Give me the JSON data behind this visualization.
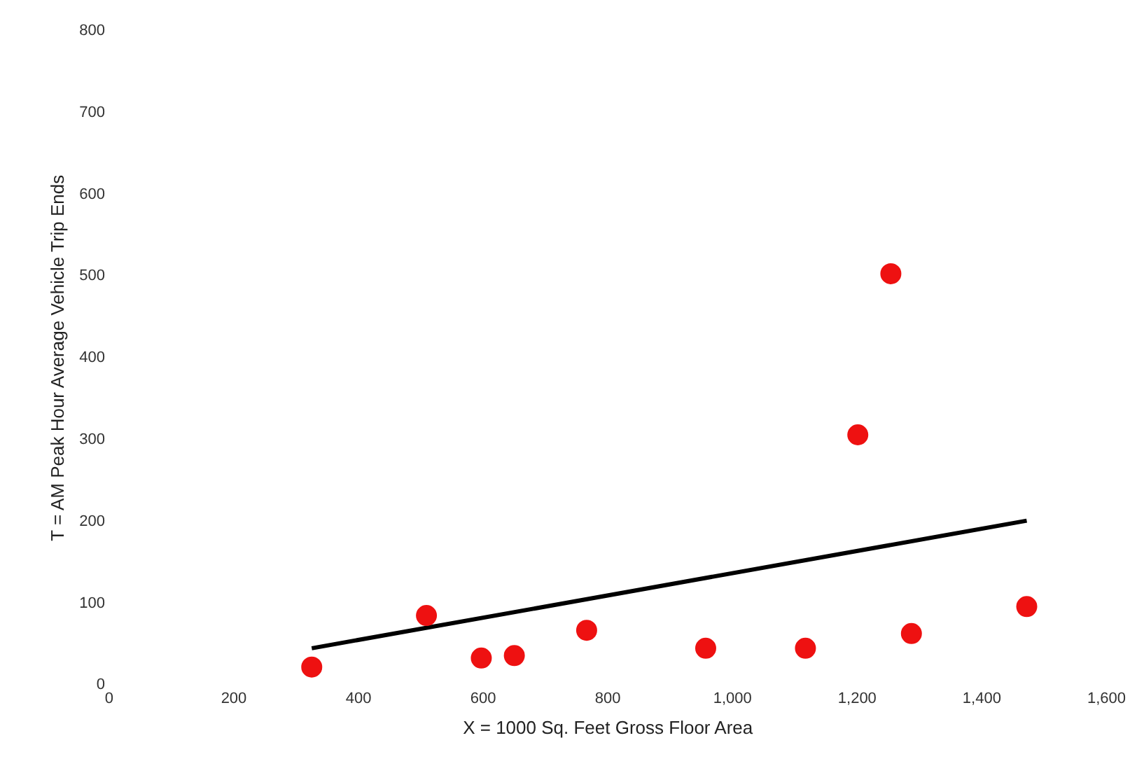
{
  "chart_data": {
    "type": "scatter",
    "xlabel": "X = 1000 Sq. Feet Gross Floor Area",
    "ylabel": "T = AM Peak Hour Average Vehicle Trip Ends",
    "xlim": [
      0,
      1600
    ],
    "xticks": [
      0,
      200,
      400,
      600,
      800,
      {
        "value": 1000,
        "label": "1,000"
      },
      {
        "value": 1200,
        "label": "1,200"
      },
      {
        "value": 1400,
        "label": "1,400"
      },
      {
        "value": 1600,
        "label": "1,600"
      }
    ],
    "ylim": [
      0,
      800
    ],
    "yticks": [
      0,
      100,
      200,
      300,
      400,
      500,
      600,
      700,
      800
    ],
    "grid": false,
    "legend": false,
    "marker": "circle",
    "series": [
      {
        "color": "#ee1111",
        "x": [
          325,
          509,
          597,
          650,
          766,
          957,
          1117,
          1201,
          1254,
          1287,
          1472
        ],
        "values": [
          22,
          85,
          33,
          36,
          67,
          45,
          45,
          306,
          503,
          63,
          96
        ]
      },
      {
        "type": "line",
        "color": "#000000",
        "x": [
          325,
          1472
        ],
        "values": [
          45,
          201
        ],
        "marker": "none",
        "line_style": "solid"
      }
    ]
  }
}
